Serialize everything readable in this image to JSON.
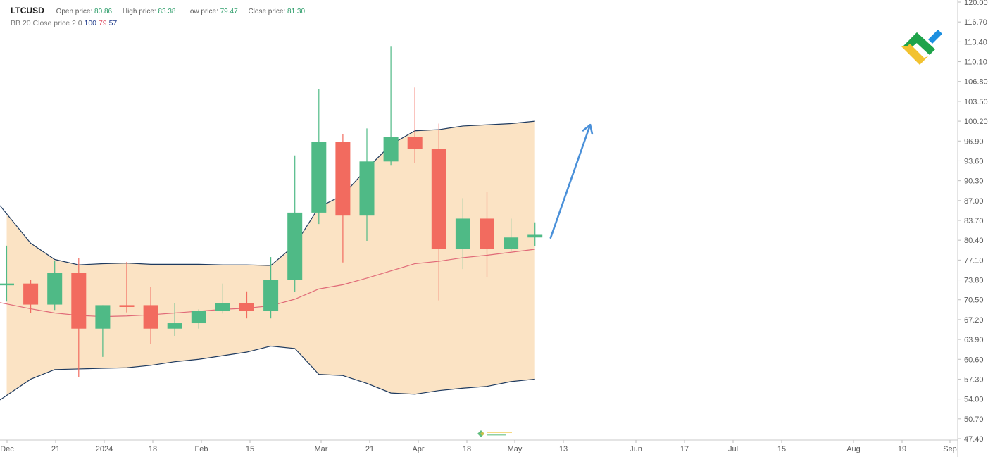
{
  "header": {
    "symbol": "LTCUSD",
    "open_label": "Open price:",
    "open_value": "80.86",
    "high_label": "High price:",
    "high_value": "83.38",
    "low_label": "Low price:",
    "low_value": "79.47",
    "close_label": "Close price:",
    "close_value": "81.30"
  },
  "indicator": {
    "name": "BB",
    "params": "20 Close price 2 0",
    "upper": "100",
    "middle": "79",
    "lower": "57"
  },
  "colors": {
    "up": "#4fba86",
    "down": "#f26b5f",
    "band_fill": "#fbe3c4",
    "band_line": "#1e3a5f",
    "middle_line": "#e06a78",
    "arrow": "#4a90d9",
    "logo_green": "#1fa34a",
    "logo_yellow": "#f2c230",
    "logo_blue": "#1c8fe0"
  },
  "icons": {
    "logo": "company-logo-icon",
    "watermark": "watermark-icon"
  },
  "chart_data": {
    "type": "candlestick",
    "y_axis": {
      "range": [
        47.4,
        120.0
      ],
      "ticks": [
        "120.00",
        "116.70",
        "113.40",
        "110.10",
        "106.80",
        "103.50",
        "100.20",
        "96.90",
        "93.60",
        "90.30",
        "87.00",
        "83.70",
        "80.40",
        "77.10",
        "73.80",
        "70.50",
        "67.20",
        "63.90",
        "60.60",
        "57.30",
        "54.00",
        "50.70",
        "47.40"
      ]
    },
    "x_axis": {
      "ticks": [
        "Dec",
        "21",
        "2024",
        "18",
        "Feb",
        "15",
        "Mar",
        "21",
        "Apr",
        "18",
        "May",
        "13",
        "Jun",
        "17",
        "Jul",
        "15",
        "Aug",
        "19",
        "Sep"
      ]
    },
    "candles": [
      {
        "o": 73.2,
        "h": 79.5,
        "l": 70.2,
        "c": 73.2
      },
      {
        "o": 73.2,
        "h": 73.8,
        "l": 68.3,
        "c": 69.7
      },
      {
        "o": 69.7,
        "h": 77.0,
        "l": 68.8,
        "c": 75.0
      },
      {
        "o": 75.0,
        "h": 77.5,
        "l": 57.6,
        "c": 65.7
      },
      {
        "o": 65.7,
        "h": 69.6,
        "l": 61.0,
        "c": 69.6
      },
      {
        "o": 69.6,
        "h": 76.8,
        "l": 68.4,
        "c": 69.3
      },
      {
        "o": 69.6,
        "h": 72.6,
        "l": 63.1,
        "c": 65.7
      },
      {
        "o": 65.7,
        "h": 69.9,
        "l": 64.5,
        "c": 66.6
      },
      {
        "o": 66.6,
        "h": 68.9,
        "l": 65.7,
        "c": 68.6
      },
      {
        "o": 68.6,
        "h": 73.2,
        "l": 68.2,
        "c": 69.9
      },
      {
        "o": 69.9,
        "h": 71.9,
        "l": 67.4,
        "c": 68.6
      },
      {
        "o": 68.6,
        "h": 77.6,
        "l": 67.4,
        "c": 73.8
      },
      {
        "o": 73.8,
        "h": 94.5,
        "l": 71.8,
        "c": 85.0
      },
      {
        "o": 85.0,
        "h": 105.6,
        "l": 83.1,
        "c": 96.7
      },
      {
        "o": 96.7,
        "h": 98.0,
        "l": 76.7,
        "c": 84.5
      },
      {
        "o": 84.5,
        "h": 99.0,
        "l": 80.3,
        "c": 93.5
      },
      {
        "o": 93.5,
        "h": 112.6,
        "l": 92.8,
        "c": 97.6
      },
      {
        "o": 97.6,
        "h": 105.8,
        "l": 93.3,
        "c": 95.6
      },
      {
        "o": 95.6,
        "h": 99.8,
        "l": 70.4,
        "c": 79.0
      },
      {
        "o": 79.0,
        "h": 87.4,
        "l": 75.6,
        "c": 84.0
      },
      {
        "o": 84.0,
        "h": 88.4,
        "l": 74.3,
        "c": 79.0
      },
      {
        "o": 79.0,
        "h": 84.0,
        "l": 78.6,
        "c": 80.86
      },
      {
        "o": 80.86,
        "h": 83.38,
        "l": 79.47,
        "c": 81.3
      }
    ],
    "bollinger": {
      "period": 20,
      "upper": [
        84.8,
        79.9,
        77.2,
        76.3,
        76.5,
        76.6,
        76.4,
        76.4,
        76.4,
        76.3,
        76.3,
        76.2,
        79.6,
        85.9,
        87.9,
        92.3,
        96.3,
        98.6,
        98.8,
        99.4,
        99.6,
        99.8,
        100.2
      ],
      "middle": [
        69.8,
        69.0,
        68.3,
        67.9,
        67.7,
        67.8,
        68.0,
        68.3,
        68.6,
        68.9,
        69.1,
        69.5,
        70.6,
        72.3,
        73.0,
        74.1,
        75.3,
        76.5,
        76.9,
        77.5,
        77.9,
        78.4,
        78.9
      ],
      "lower": [
        54.6,
        57.3,
        58.9,
        59.0,
        59.1,
        59.2,
        59.6,
        60.2,
        60.6,
        61.2,
        61.8,
        62.8,
        62.4,
        58.1,
        57.9,
        56.6,
        55.0,
        54.8,
        55.4,
        55.8,
        56.1,
        56.9,
        57.3
      ]
    },
    "forecast_arrow": {
      "from": {
        "candle_offset": 0.65,
        "value": 80.8
      },
      "to": {
        "candle_offset": 2.3,
        "value": 99.6
      }
    }
  }
}
